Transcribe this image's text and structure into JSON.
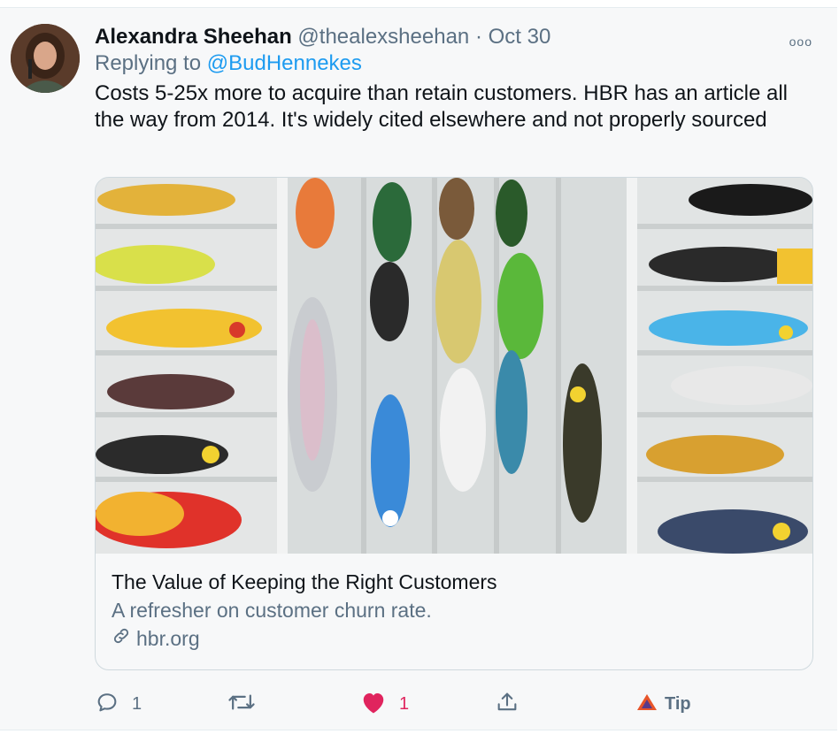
{
  "tweet": {
    "author_name": "Alexandra Sheehan",
    "handle": "@thealexsheehan",
    "separator": "·",
    "date": "Oct 30",
    "more_label": "ooo",
    "replying_prefix": "Replying to",
    "replying_to": "@BudHennekes",
    "text": "Costs 5-25x more to acquire than retain customers. HBR has an article all the way from 2014. It's widely cited elsewhere and not properly sourced"
  },
  "card": {
    "image_icon": "fishing-lures-tackle-box-image",
    "title": "The Value of Keeping the Right Customers",
    "description": "A refresher on customer churn rate.",
    "domain": "hbr.org",
    "domain_icon": "link-icon"
  },
  "actions": {
    "reply": {
      "icon": "reply-icon",
      "count": "1"
    },
    "retweet": {
      "icon": "retweet-icon"
    },
    "like": {
      "icon": "heart-icon",
      "count": "1",
      "active": true,
      "color": "#e0245e"
    },
    "share": {
      "icon": "share-icon"
    },
    "tip": {
      "icon": "tip-icon",
      "label": "Tip"
    }
  },
  "colors": {
    "background": "#f7f8f9",
    "link": "#1d9bf0",
    "secondary_text": "#5b7083",
    "like": "#e0245e"
  }
}
